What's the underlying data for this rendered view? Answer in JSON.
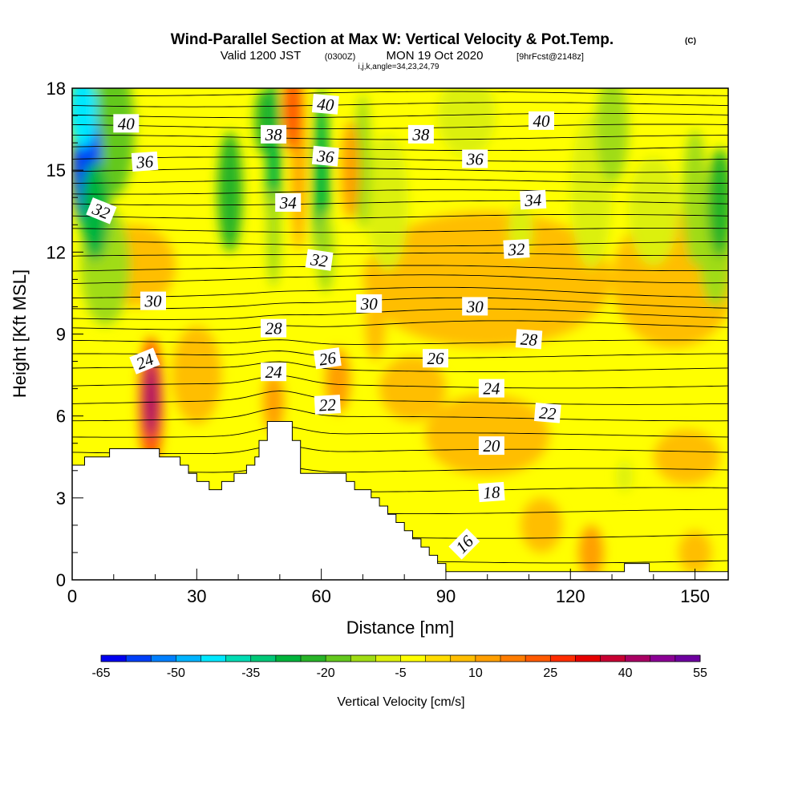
{
  "figure": {
    "title": "Wind-Parallel Section at Max W: Vertical Velocity & Pot.Temp.",
    "copyright_mark": "(C)",
    "subtitle_valid": "Valid 1200 JST",
    "subtitle_utc": "(0300Z)",
    "subtitle_date": "MON 19 Oct 2020",
    "subtitle_fcst": "[9hrFcst@2148z]",
    "subtitle_params": "i,j,k,angle=34,23,24,79"
  },
  "chart_data": {
    "type": "heatmap",
    "description_fields": "filled contours of vertical velocity with overlaid potential temperature contour lines",
    "xlabel": "Distance [nm]",
    "ylabel": "Height [Kft MSL]",
    "xlim": [
      0,
      158
    ],
    "ylim": [
      0,
      18
    ],
    "x_ticks": [
      0,
      30,
      60,
      90,
      120,
      150
    ],
    "y_ticks": [
      0,
      3,
      6,
      9,
      12,
      15,
      18
    ],
    "x_tick_labels": [
      "0",
      "30",
      "60",
      "90",
      "120",
      "150"
    ],
    "y_tick_labels": [
      "0",
      "3",
      "6",
      "9",
      "12",
      "15",
      "18"
    ],
    "grid": false,
    "background_field_value_cms": 0,
    "contour_labels": [
      {
        "text": "40",
        "x": 13,
        "y": 16.7,
        "rot": 0
      },
      {
        "text": "36",
        "x": 17.5,
        "y": 15.3,
        "rot": -4
      },
      {
        "text": "32",
        "x": 7,
        "y": 13.5,
        "rot": 22
      },
      {
        "text": "38",
        "x": 48.5,
        "y": 16.3,
        "rot": 0
      },
      {
        "text": "34",
        "x": 52,
        "y": 13.8,
        "rot": 0
      },
      {
        "text": "40",
        "x": 61,
        "y": 17.4,
        "rot": 5
      },
      {
        "text": "36",
        "x": 61,
        "y": 15.5,
        "rot": 5
      },
      {
        "text": "32",
        "x": 59.5,
        "y": 11.7,
        "rot": 8
      },
      {
        "text": "38",
        "x": 84,
        "y": 16.3,
        "rot": 0
      },
      {
        "text": "40",
        "x": 113,
        "y": 16.8,
        "rot": 0
      },
      {
        "text": "36",
        "x": 97,
        "y": 15.4,
        "rot": 0
      },
      {
        "text": "34",
        "x": 111,
        "y": 13.9,
        "rot": -3
      },
      {
        "text": "32",
        "x": 107,
        "y": 12.1,
        "rot": -3
      },
      {
        "text": "30",
        "x": 19.5,
        "y": 10.2,
        "rot": 0
      },
      {
        "text": "30",
        "x": 71.5,
        "y": 10.1,
        "rot": 0
      },
      {
        "text": "30",
        "x": 97,
        "y": 10.0,
        "rot": 0
      },
      {
        "text": "28",
        "x": 48.5,
        "y": 9.2,
        "rot": 0
      },
      {
        "text": "28",
        "x": 110,
        "y": 8.8,
        "rot": 4
      },
      {
        "text": "24",
        "x": 17.5,
        "y": 8.0,
        "rot": -22
      },
      {
        "text": "24",
        "x": 48.5,
        "y": 7.6,
        "rot": 0
      },
      {
        "text": "26",
        "x": 61.5,
        "y": 8.1,
        "rot": -8
      },
      {
        "text": "26",
        "x": 87.5,
        "y": 8.1,
        "rot": 0
      },
      {
        "text": "24",
        "x": 101,
        "y": 7.0,
        "rot": 0
      },
      {
        "text": "22",
        "x": 61.5,
        "y": 6.4,
        "rot": -3
      },
      {
        "text": "22",
        "x": 114.5,
        "y": 6.1,
        "rot": 5
      },
      {
        "text": "20",
        "x": 101,
        "y": 4.9,
        "rot": 0
      },
      {
        "text": "18",
        "x": 101,
        "y": 3.2,
        "rot": -4
      },
      {
        "text": "16",
        "x": 94.5,
        "y": 1.3,
        "rot": -45
      }
    ],
    "theta_line_heights": [
      0.7,
      1.6,
      2.5,
      3.3,
      4.0,
      4.7,
      5.3,
      5.9,
      6.5,
      7.1,
      7.7,
      8.2,
      8.7,
      9.2,
      9.6,
      10.0,
      10.4,
      10.9,
      11.3,
      11.8,
      12.3,
      12.8,
      13.3,
      13.8,
      14.2,
      14.6,
      15.0,
      15.4,
      15.8,
      16.2,
      16.6,
      17.0,
      17.4,
      17.8
    ],
    "terrain": [
      [
        0,
        4.2
      ],
      [
        3,
        4.2
      ],
      [
        3,
        4.5
      ],
      [
        9,
        4.5
      ],
      [
        9,
        4.8
      ],
      [
        21,
        4.8
      ],
      [
        21,
        4.5
      ],
      [
        26,
        4.5
      ],
      [
        26,
        4.2
      ],
      [
        28,
        4.2
      ],
      [
        28,
        3.9
      ],
      [
        30,
        3.9
      ],
      [
        30,
        3.6
      ],
      [
        33,
        3.6
      ],
      [
        33,
        3.3
      ],
      [
        36,
        3.3
      ],
      [
        36,
        3.6
      ],
      [
        39,
        3.6
      ],
      [
        39,
        3.9
      ],
      [
        42,
        3.9
      ],
      [
        42,
        4.2
      ],
      [
        44,
        4.2
      ],
      [
        44,
        4.5
      ],
      [
        45,
        4.5
      ],
      [
        45,
        5.1
      ],
      [
        47,
        5.1
      ],
      [
        47,
        5.8
      ],
      [
        53,
        5.8
      ],
      [
        53,
        5.1
      ],
      [
        55,
        5.1
      ],
      [
        55,
        3.9
      ],
      [
        66,
        3.9
      ],
      [
        66,
        3.6
      ],
      [
        68,
        3.6
      ],
      [
        68,
        3.3
      ],
      [
        72,
        3.3
      ],
      [
        72,
        3.0
      ],
      [
        74,
        3.0
      ],
      [
        74,
        2.7
      ],
      [
        76,
        2.7
      ],
      [
        76,
        2.4
      ],
      [
        78,
        2.4
      ],
      [
        78,
        2.1
      ],
      [
        80,
        2.1
      ],
      [
        80,
        1.8
      ],
      [
        82,
        1.8
      ],
      [
        82,
        1.5
      ],
      [
        84,
        1.5
      ],
      [
        84,
        1.2
      ],
      [
        86,
        1.2
      ],
      [
        86,
        0.9
      ],
      [
        88,
        0.9
      ],
      [
        88,
        0.6
      ],
      [
        90,
        0.6
      ],
      [
        90,
        0.3
      ],
      [
        92,
        0.3
      ],
      [
        92,
        0.3
      ],
      [
        133,
        0.3
      ],
      [
        133,
        0.6
      ],
      [
        139,
        0.6
      ],
      [
        139,
        0.3
      ],
      [
        158,
        0.3
      ]
    ],
    "w_anomalies": [
      {
        "x": 3.5,
        "y": 15.2,
        "rx": 3.5,
        "ry": 2.4,
        "w": -60
      },
      {
        "x": 2.5,
        "y": 17.2,
        "rx": 3.5,
        "ry": 1.4,
        "w": -45
      },
      {
        "x": 5.5,
        "y": 13.5,
        "rx": 3.5,
        "ry": 1.8,
        "w": -30
      },
      {
        "x": 8,
        "y": 11.5,
        "rx": 6,
        "ry": 2.2,
        "w": -14
      },
      {
        "x": 10,
        "y": 16.5,
        "rx": 5,
        "ry": 2.5,
        "w": -20
      },
      {
        "x": 19,
        "y": 6.6,
        "rx": 1.8,
        "ry": 1.4,
        "w": 40
      },
      {
        "x": 19,
        "y": 6.5,
        "rx": 3,
        "ry": 2.4,
        "w": 20
      },
      {
        "x": 38,
        "y": 14.2,
        "rx": 3,
        "ry": 2.2,
        "w": -22
      },
      {
        "x": 46,
        "y": 16.8,
        "rx": 2,
        "ry": 1.2,
        "w": -25
      },
      {
        "x": 48.5,
        "y": 15.0,
        "rx": 1.8,
        "ry": 3.5,
        "w": -26
      },
      {
        "x": 48.5,
        "y": 12.5,
        "rx": 1.6,
        "ry": 1.8,
        "w": -15
      },
      {
        "x": 53,
        "y": 17.2,
        "rx": 2.2,
        "ry": 1.5,
        "w": 20
      },
      {
        "x": 54.5,
        "y": 15.5,
        "rx": 1.6,
        "ry": 3.5,
        "w": 12
      },
      {
        "x": 48.5,
        "y": 6.5,
        "rx": 2.5,
        "ry": 1.1,
        "w": 12
      },
      {
        "x": 60,
        "y": 14.5,
        "rx": 2,
        "ry": 3.5,
        "w": -28
      },
      {
        "x": 61,
        "y": 12.0,
        "rx": 2,
        "ry": 1.5,
        "w": -12
      },
      {
        "x": 67,
        "y": 15.0,
        "rx": 2.2,
        "ry": 1.8,
        "w": 12
      },
      {
        "x": 70,
        "y": 15.3,
        "rx": 2,
        "ry": 2.5,
        "w": -12
      },
      {
        "x": 76,
        "y": 13.8,
        "rx": 5,
        "ry": 2.5,
        "w": -10
      },
      {
        "x": 95,
        "y": 17.0,
        "rx": 7,
        "ry": 1.5,
        "w": -8
      },
      {
        "x": 125,
        "y": 14.2,
        "rx": 5,
        "ry": 2.8,
        "w": -10
      },
      {
        "x": 130,
        "y": 16.5,
        "rx": 4,
        "ry": 2,
        "w": -12
      },
      {
        "x": 140,
        "y": 13.5,
        "rx": 6,
        "ry": 2,
        "w": -8
      },
      {
        "x": 150,
        "y": 14.0,
        "rx": 3,
        "ry": 2.5,
        "w": -14
      },
      {
        "x": 156,
        "y": 13.8,
        "rx": 3,
        "ry": 2,
        "w": -25
      },
      {
        "x": 155,
        "y": 12.0,
        "rx": 4,
        "ry": 2,
        "w": -12
      },
      {
        "x": 100,
        "y": 11.0,
        "rx": 30,
        "ry": 2.5,
        "w": 8
      },
      {
        "x": 145,
        "y": 11.0,
        "rx": 15,
        "ry": 2.5,
        "w": 9
      },
      {
        "x": 15,
        "y": 11.5,
        "rx": 10,
        "ry": 1.5,
        "w": 6
      },
      {
        "x": 30,
        "y": 7.5,
        "rx": 6,
        "ry": 1.8,
        "w": 8
      },
      {
        "x": 100,
        "y": 5.3,
        "rx": 15,
        "ry": 1.5,
        "w": 9
      },
      {
        "x": 82,
        "y": 7.0,
        "rx": 8,
        "ry": 1.2,
        "w": 6
      },
      {
        "x": 148,
        "y": 4.5,
        "rx": 8,
        "ry": 1,
        "w": 6
      },
      {
        "x": 125,
        "y": 1.0,
        "rx": 3,
        "ry": 1,
        "w": 12
      },
      {
        "x": 113,
        "y": 2.0,
        "rx": 5,
        "ry": 1,
        "w": 7
      },
      {
        "x": 150,
        "y": 1.0,
        "rx": 4,
        "ry": 0.8,
        "w": 8
      },
      {
        "x": 64,
        "y": 7.3,
        "rx": 3,
        "ry": 1.2,
        "w": 10
      },
      {
        "x": 73,
        "y": 9.5,
        "rx": 2.5,
        "ry": 1.5,
        "w": 8
      },
      {
        "x": 133,
        "y": 3.8,
        "rx": 2,
        "ry": 0.6,
        "w": -10
      },
      {
        "x": 108,
        "y": 12.8,
        "rx": 3,
        "ry": 1,
        "w": -8
      }
    ]
  },
  "colorbar": {
    "label": "Vertical Velocity [cm/s]",
    "tick_labels": [
      "-65",
      "-50",
      "-35",
      "-20",
      "-5",
      "10",
      "25",
      "40",
      "55"
    ],
    "tick_values": [
      -65,
      -50,
      -35,
      -20,
      -5,
      10,
      25,
      40,
      55
    ],
    "colors": [
      "#0000f0",
      "#0040f8",
      "#0080ff",
      "#00b4ff",
      "#00e8ff",
      "#00dcb4",
      "#00c878",
      "#00b43c",
      "#28b428",
      "#64c81e",
      "#a0dc14",
      "#dcf00a",
      "#ffff00",
      "#ffdc00",
      "#ffbe00",
      "#ff9f00",
      "#ff7d00",
      "#ff5a00",
      "#ff2d00",
      "#e60000",
      "#c80032",
      "#aa0064",
      "#8c0096",
      "#6e00a0"
    ]
  }
}
